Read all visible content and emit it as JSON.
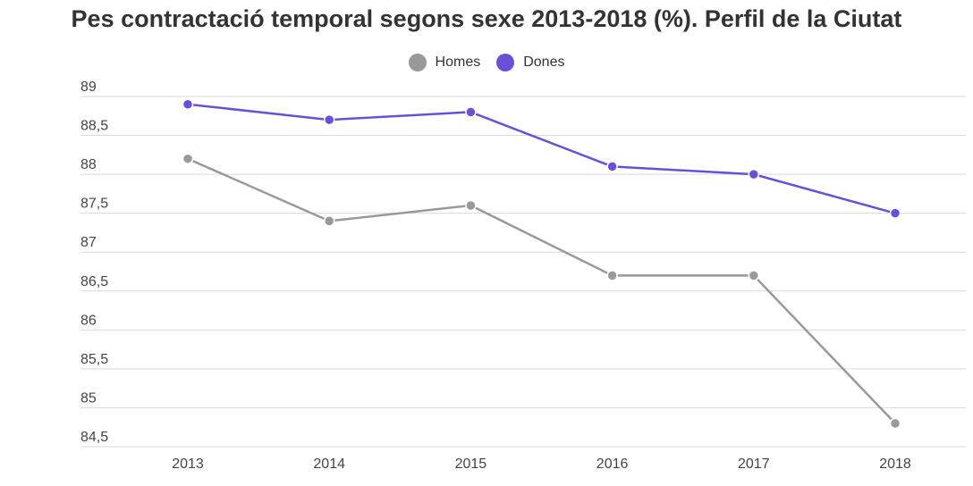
{
  "chart_data": {
    "type": "line",
    "title": "Pes contractació temporal segons sexe 2013-2018 (%). Perfil de la Ciutat",
    "categories": [
      "2013",
      "2014",
      "2015",
      "2016",
      "2017",
      "2018"
    ],
    "series": [
      {
        "name": "Homes",
        "color": "#999999",
        "values": [
          88.2,
          87.4,
          87.6,
          86.7,
          86.7,
          84.8
        ]
      },
      {
        "name": "Dones",
        "color": "#6b4fd8",
        "values": [
          88.9,
          88.7,
          88.8,
          88.1,
          88.0,
          87.5
        ]
      }
    ],
    "yticks": [
      "89",
      "88,5",
      "88",
      "87,5",
      "87",
      "86,5",
      "86",
      "85,5",
      "85",
      "84,5"
    ],
    "ylim": [
      84.5,
      89
    ],
    "grid": true,
    "legend_position": "top-center",
    "gridline_color": "#d9d9d9"
  }
}
